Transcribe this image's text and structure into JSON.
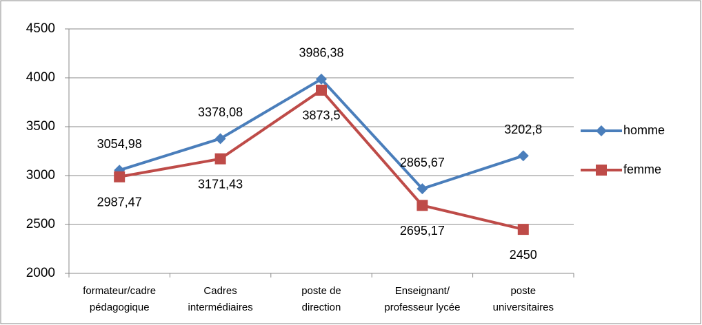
{
  "chart_data": {
    "type": "line",
    "categories": [
      "formateur/cadre\npédagogique",
      "Cadres\nintermédiaires",
      "poste de\ndirection",
      "Enseignant/\nprofesseur lycée",
      "poste\nuniversitaires"
    ],
    "series": [
      {
        "name": "homme",
        "color": "#4a7ebb",
        "marker": "diamond",
        "values": [
          3054.98,
          3378.08,
          3986.38,
          2865.67,
          3202.8
        ],
        "value_labels": [
          "3054,98",
          "3378,08",
          "3986,38",
          "2865,67",
          "3202,8"
        ]
      },
      {
        "name": "femme",
        "color": "#be4b48",
        "marker": "square",
        "values": [
          2987.47,
          3171.43,
          3873.5,
          2695.17,
          2450
        ],
        "value_labels": [
          "2987,47",
          "3171,43",
          "3873,5",
          "2695,17",
          "2450"
        ]
      }
    ],
    "ylim": [
      2000,
      4500
    ],
    "yticks": [
      2000,
      2500,
      3000,
      3500,
      4000,
      4500
    ],
    "grid": true,
    "legend": "right"
  }
}
